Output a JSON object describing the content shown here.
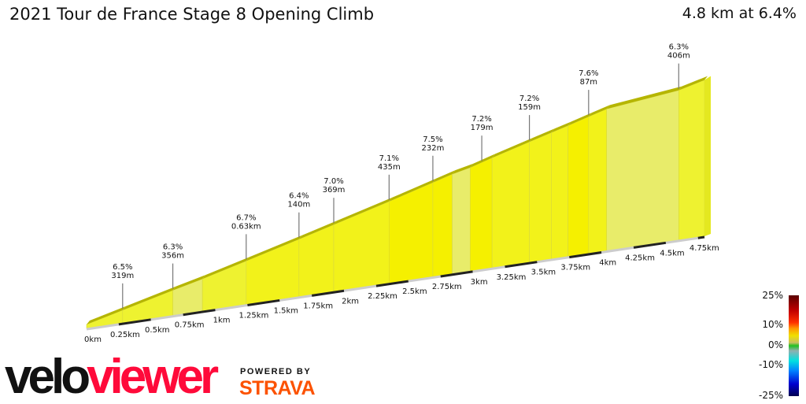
{
  "chart_data": {
    "type": "area",
    "title": "2021 Tour de France Stage 8 Opening Climb",
    "subtitle": "4.8 km at 6.4%",
    "xlabel": "",
    "ylabel": "",
    "xlim": [
      0,
      4.8
    ],
    "x_ticks": [
      "0km",
      "0.25km",
      "0.5km",
      "0.75km",
      "1km",
      "1.25km",
      "1.5km",
      "1.75km",
      "2km",
      "2.25km",
      "2.5km",
      "2.75km",
      "3km",
      "3.25km",
      "3.5km",
      "3.75km",
      "4km",
      "4.25km",
      "4.5km",
      "4.75km"
    ],
    "profile": [
      {
        "d": 0,
        "e": 0
      },
      {
        "d": 0.28,
        "e": 18
      },
      {
        "d": 0.67,
        "e": 43
      },
      {
        "d": 0.9,
        "e": 57
      },
      {
        "d": 1.24,
        "e": 80
      },
      {
        "d": 1.65,
        "e": 108
      },
      {
        "d": 1.92,
        "e": 127
      },
      {
        "d": 2.35,
        "e": 157
      },
      {
        "d": 2.69,
        "e": 182
      },
      {
        "d": 2.84,
        "e": 193
      },
      {
        "d": 2.98,
        "e": 201
      },
      {
        "d": 3.15,
        "e": 214
      },
      {
        "d": 3.44,
        "e": 235
      },
      {
        "d": 3.61,
        "e": 247
      },
      {
        "d": 3.74,
        "e": 256
      },
      {
        "d": 3.9,
        "e": 268
      },
      {
        "d": 4.04,
        "e": 278
      },
      {
        "d": 4.6,
        "e": 294
      },
      {
        "d": 4.8,
        "e": 307
      }
    ],
    "annotations": [
      {
        "d": 0.28,
        "grade": "6.5%",
        "length": "319m"
      },
      {
        "d": 0.67,
        "grade": "6.3%",
        "length": "356m"
      },
      {
        "d": 1.24,
        "grade": "6.7%",
        "length": "0.63km"
      },
      {
        "d": 1.65,
        "grade": "6.4%",
        "length": "140m"
      },
      {
        "d": 1.92,
        "grade": "7.0%",
        "length": "369m"
      },
      {
        "d": 2.35,
        "grade": "7.1%",
        "length": "435m"
      },
      {
        "d": 2.69,
        "grade": "7.5%",
        "length": "232m"
      },
      {
        "d": 3.07,
        "grade": "7.2%",
        "length": "179m"
      },
      {
        "d": 3.44,
        "grade": "7.2%",
        "length": "159m"
      },
      {
        "d": 3.9,
        "grade": "7.6%",
        "length": "87m"
      },
      {
        "d": 4.6,
        "grade": "6.3%",
        "length": "406m"
      }
    ],
    "legend": {
      "placement": "bottom-right",
      "labels": [
        "25%",
        "10%",
        "0%",
        "-10%",
        "-25%"
      ],
      "values": [
        25,
        10,
        0,
        -10,
        -25
      ]
    },
    "colors": {
      "fill": "#f2f21a",
      "ridge": "#b5b500",
      "pale": "#e8ec6a"
    }
  },
  "branding": {
    "velo": "velo",
    "viewer": "viewer",
    "powered": "POWERED BY",
    "strava": "STRAVA"
  }
}
